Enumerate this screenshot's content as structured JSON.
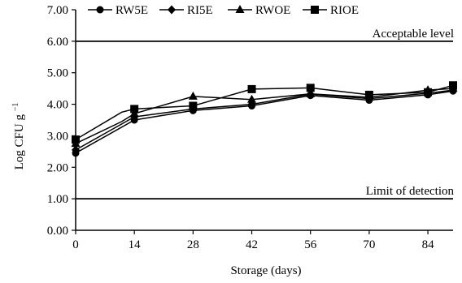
{
  "chart_data": {
    "type": "line",
    "xlabel": "Storage (days)",
    "ylabel_main": "Log CFU g",
    "ylabel_sup": "−1",
    "x_ticks": [
      0,
      14,
      28,
      42,
      56,
      70,
      84
    ],
    "y_ticks": [
      "0.00",
      "1.00",
      "2.00",
      "3.00",
      "4.00",
      "5.00",
      "6.00",
      "7.00"
    ],
    "xlim": [
      0,
      90
    ],
    "ylim": [
      0,
      7
    ],
    "grid": false,
    "legend_position": "top",
    "reference_lines": [
      {
        "label": "Acceptable level",
        "value": 6.0
      },
      {
        "label": "Limit of detection",
        "value": 1.0
      }
    ],
    "series": [
      {
        "name": "RW5E",
        "marker": "circle",
        "x": [
          0,
          14,
          28,
          42,
          56,
          70,
          84,
          90
        ],
        "y": [
          2.45,
          3.5,
          3.8,
          3.95,
          4.28,
          4.13,
          4.3,
          4.42
        ]
      },
      {
        "name": "RI5E",
        "marker": "diamond",
        "x": [
          0,
          14,
          28,
          42,
          56,
          70,
          84,
          90
        ],
        "y": [
          2.55,
          3.6,
          3.85,
          4.0,
          4.32,
          4.18,
          4.35,
          4.45
        ]
      },
      {
        "name": "RWOE",
        "marker": "triangle",
        "x": [
          0,
          11,
          14,
          28,
          42,
          56,
          70,
          84,
          90
        ],
        "y": [
          2.75,
          3.45,
          3.7,
          4.25,
          4.15,
          4.33,
          4.22,
          4.45,
          4.5
        ]
      },
      {
        "name": "RIOE",
        "marker": "square",
        "x": [
          0,
          11,
          14,
          28,
          42,
          56,
          70,
          84,
          90
        ],
        "y": [
          2.88,
          3.75,
          3.85,
          3.95,
          4.48,
          4.52,
          4.3,
          4.38,
          4.6
        ]
      }
    ]
  }
}
